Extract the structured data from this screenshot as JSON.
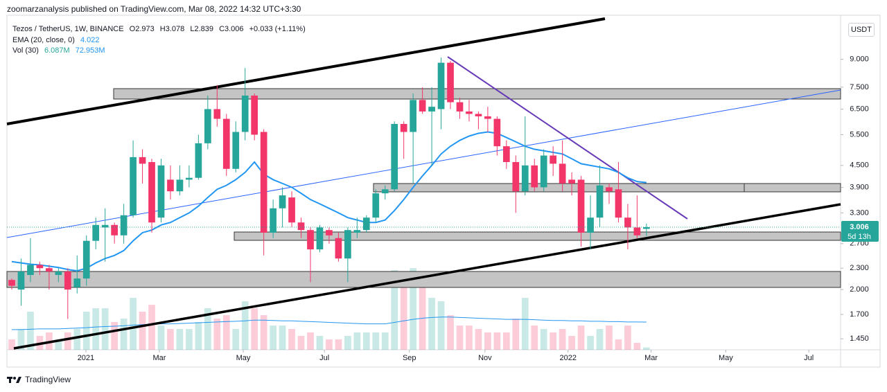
{
  "header": "zoomarzanalysis published on TradingView.com, Mar 08, 2022 14:32 UTC+3:30",
  "legend": {
    "symbol": "Tezos / TetherUS, 1W, BINANCE",
    "open": "O2.973",
    "high": "H3.078",
    "low": "L2.839",
    "close": "C3.006",
    "change": "+0.033 (+1.11%)",
    "ema_name": "EMA (20, close, 0)",
    "ema_value": "4.022",
    "vol_name": "Vol (30)",
    "vol_value": "6.087M",
    "vol_ma_value": "72.953M"
  },
  "currency": "USDT",
  "last_price_label": "3.006",
  "countdown": "5d 13h",
  "footer": "TradingView",
  "chart_data": {
    "type": "candlestick",
    "log_scale": true,
    "ylim": [
      1.35,
      12.0
    ],
    "yticks": [
      {
        "value": 9,
        "label": "9.000"
      },
      {
        "value": 7.5,
        "label": "7.500"
      },
      {
        "value": 6.5,
        "label": "6.500"
      },
      {
        "value": 5.5,
        "label": "5.500"
      },
      {
        "value": 4.5,
        "label": "4.500"
      },
      {
        "value": 3.9,
        "label": "3.900"
      },
      {
        "value": 3.3,
        "label": "3.300"
      },
      {
        "value": 2.7,
        "label": "2.700"
      },
      {
        "value": 2.3,
        "label": "2.300"
      },
      {
        "value": 2,
        "label": "2.000"
      },
      {
        "value": 1.7,
        "label": "1.700"
      },
      {
        "value": 1.45,
        "label": "1.450"
      }
    ],
    "xlim": [
      -0.52,
      88.8
    ],
    "xticks": [
      {
        "value": 7.94,
        "label": "2021"
      },
      {
        "value": 15.81,
        "label": "Mar"
      },
      {
        "value": 24.8,
        "label": "May"
      },
      {
        "value": 33.5,
        "label": "Jul"
      },
      {
        "value": 42.6,
        "label": "Sep"
      },
      {
        "value": 50.7,
        "label": "Nov"
      },
      {
        "value": 59.6,
        "label": "2022"
      },
      {
        "value": 68.5,
        "label": "Mar"
      },
      {
        "value": 76.5,
        "label": "May"
      },
      {
        "value": 85.4,
        "label": "Jul"
      }
    ],
    "up_color": "#26a69a",
    "down_color": "#f23669",
    "ema_color": "#2196f3",
    "ohlc": [
      [
        2.13,
        2.15,
        2.0,
        2.05
      ],
      [
        2.0,
        2.45,
        1.8,
        2.25
      ],
      [
        2.2,
        2.8,
        2.1,
        2.35
      ],
      [
        2.35,
        2.4,
        2.2,
        2.3
      ],
      [
        2.3,
        2.35,
        2.0,
        2.25
      ],
      [
        2.2,
        2.3,
        2.1,
        2.25
      ],
      [
        2.25,
        2.3,
        1.65,
        2.0
      ],
      [
        2.03,
        2.5,
        1.95,
        2.15
      ],
      [
        2.15,
        2.85,
        2.05,
        2.75
      ],
      [
        2.75,
        3.2,
        2.6,
        3.05
      ],
      [
        3.0,
        3.4,
        2.4,
        3.05
      ],
      [
        3.05,
        3.1,
        2.7,
        2.85
      ],
      [
        2.85,
        3.5,
        2.7,
        3.25
      ],
      [
        3.25,
        5.3,
        3.2,
        4.75
      ],
      [
        4.75,
        5.0,
        4.0,
        4.55
      ],
      [
        4.6,
        4.7,
        2.9,
        3.1
      ],
      [
        3.2,
        4.7,
        3.1,
        4.5
      ],
      [
        4.1,
        4.5,
        3.6,
        3.8
      ],
      [
        3.8,
        4.5,
        3.7,
        4.1
      ],
      [
        4.1,
        4.5,
        3.9,
        4.15
      ],
      [
        4.15,
        5.5,
        4.1,
        5.2
      ],
      [
        5.2,
        7.1,
        5.0,
        6.5
      ],
      [
        6.5,
        7.6,
        5.8,
        6.1
      ],
      [
        6.1,
        6.3,
        4.2,
        4.4
      ],
      [
        4.4,
        6.0,
        4.3,
        5.6
      ],
      [
        5.6,
        8.5,
        5.3,
        7.1
      ],
      [
        7.1,
        7.2,
        5.3,
        5.5
      ],
      [
        5.6,
        5.7,
        2.5,
        2.9
      ],
      [
        2.9,
        3.6,
        2.8,
        3.4
      ],
      [
        3.4,
        3.9,
        3.0,
        3.7
      ],
      [
        3.65,
        3.8,
        3.0,
        3.1
      ],
      [
        3.1,
        3.2,
        2.8,
        2.95
      ],
      [
        2.95,
        3.0,
        2.1,
        2.6
      ],
      [
        2.6,
        3.05,
        2.55,
        3.0
      ],
      [
        2.95,
        3.0,
        2.7,
        2.85
      ],
      [
        2.8,
        2.9,
        2.4,
        2.45
      ],
      [
        2.45,
        3.0,
        2.1,
        2.95
      ],
      [
        2.9,
        3.2,
        2.8,
        2.95
      ],
      [
        2.95,
        3.25,
        2.9,
        3.2
      ],
      [
        3.2,
        3.85,
        3.1,
        3.75
      ],
      [
        3.75,
        3.95,
        3.6,
        3.85
      ],
      [
        3.85,
        6.0,
        3.8,
        5.9
      ],
      [
        5.9,
        6.0,
        4.7,
        5.6
      ],
      [
        5.6,
        7.2,
        4.0,
        6.9
      ],
      [
        6.9,
        7.5,
        6.3,
        6.4
      ],
      [
        6.4,
        7.5,
        4.5,
        6.6
      ],
      [
        6.5,
        9.1,
        5.7,
        8.8
      ],
      [
        8.8,
        8.9,
        6.5,
        6.8
      ],
      [
        6.8,
        7.0,
        6.1,
        6.4
      ],
      [
        6.4,
        6.9,
        6.0,
        6.3
      ],
      [
        6.3,
        6.4,
        5.7,
        6.2
      ],
      [
        6.2,
        6.6,
        5.6,
        6.1
      ],
      [
        6.1,
        6.2,
        4.8,
        5.1
      ],
      [
        5.1,
        5.3,
        4.4,
        4.6
      ],
      [
        4.6,
        4.8,
        3.3,
        3.8
      ],
      [
        3.8,
        6.2,
        3.7,
        4.5
      ],
      [
        4.5,
        4.7,
        3.8,
        3.9
      ],
      [
        3.9,
        5.0,
        3.8,
        4.8
      ],
      [
        4.8,
        5.1,
        4.2,
        4.55
      ],
      [
        4.55,
        5.3,
        3.8,
        4.0
      ],
      [
        4.1,
        4.3,
        3.7,
        4.0
      ],
      [
        4.1,
        4.2,
        2.65,
        2.9
      ],
      [
        2.9,
        3.7,
        2.6,
        3.2
      ],
      [
        3.2,
        4.5,
        3.0,
        3.95
      ],
      [
        3.9,
        4.0,
        3.5,
        3.8
      ],
      [
        3.85,
        4.6,
        3.1,
        3.2
      ],
      [
        3.2,
        3.5,
        2.6,
        3.0
      ],
      [
        3.0,
        3.7,
        2.8,
        2.85
      ],
      [
        2.973,
        3.078,
        2.839,
        3.006
      ]
    ],
    "ema": [
      2.4,
      2.38,
      2.36,
      2.35,
      2.33,
      2.31,
      2.28,
      2.26,
      2.3,
      2.38,
      2.45,
      2.5,
      2.58,
      2.75,
      2.9,
      2.95,
      3.05,
      3.1,
      3.2,
      3.3,
      3.45,
      3.65,
      3.85,
      3.95,
      4.1,
      4.3,
      4.6,
      4.25,
      4.1,
      4.0,
      3.9,
      3.75,
      3.6,
      3.5,
      3.4,
      3.3,
      3.2,
      3.15,
      3.1,
      3.1,
      3.15,
      3.35,
      3.6,
      3.9,
      4.2,
      4.5,
      4.85,
      5.1,
      5.3,
      5.45,
      5.55,
      5.6,
      5.55,
      5.4,
      5.25,
      5.1,
      5.0,
      4.95,
      4.9,
      4.85,
      4.7,
      4.55,
      4.5,
      4.45,
      4.4,
      4.3,
      4.15,
      4.05,
      4.022
    ],
    "vlim": [
      0,
      880
    ],
    "volume": [
      27.3,
      54.6,
      100.1,
      36.4,
      45.5,
      27.3,
      45.5,
      54.6,
      100.1,
      109.2,
      109.2,
      72.8,
      81.9,
      136.5,
      100.1,
      118.3,
      63.7,
      54.6,
      54.6,
      54.6,
      72.8,
      109.2,
      81.9,
      91,
      54.6,
      127.4,
      109.2,
      91,
      63.7,
      63.7,
      54.6,
      36.4,
      45.5,
      36.4,
      27.3,
      27.3,
      36.4,
      45.5,
      45.5,
      45.5,
      45.5,
      209.3,
      182,
      214.8,
      191.1,
      136.5,
      127.4,
      91,
      63.7,
      63.7,
      54.6,
      45.5,
      45.5,
      45.5,
      81.9,
      136.5,
      63.7,
      54.6,
      45.5,
      54.6,
      36.4,
      63.7,
      36.4,
      54.6,
      63.7,
      27.3,
      63.7,
      18.2,
      6.087
    ],
    "volume_ma": [
      53,
      53,
      54,
      55,
      55,
      55,
      56,
      57,
      58,
      60,
      61,
      62,
      63,
      65,
      66,
      67,
      68,
      68,
      69,
      70,
      71,
      72,
      73,
      74,
      75,
      76,
      78,
      78,
      77,
      76,
      76,
      75,
      74,
      73,
      72,
      71,
      70,
      69,
      68,
      68,
      68,
      72,
      76,
      80,
      83,
      85,
      86,
      86,
      85,
      84,
      83,
      82,
      81,
      80,
      80,
      80,
      79,
      78,
      77,
      77,
      76,
      76,
      75,
      75,
      74,
      74,
      73,
      73,
      72.953
    ]
  }
}
